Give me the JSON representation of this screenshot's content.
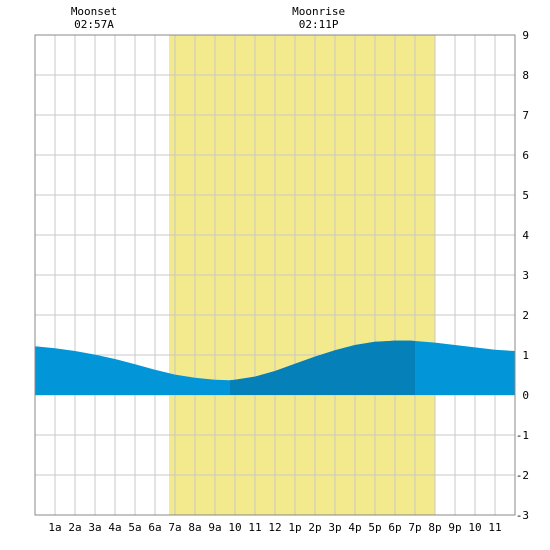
{
  "chart_data": {
    "type": "area",
    "x_tick_labels": [
      "1a",
      "2a",
      "3a",
      "4a",
      "5a",
      "6a",
      "7a",
      "8a",
      "9a",
      "10",
      "11",
      "12",
      "1p",
      "2p",
      "3p",
      "4p",
      "5p",
      "6p",
      "7p",
      "8p",
      "9p",
      "10",
      "11"
    ],
    "xlim": [
      0,
      24
    ],
    "y_tick_labels": [
      "-3",
      "-2",
      "-1",
      "0",
      "1",
      "2",
      "3",
      "4",
      "5",
      "6",
      "7",
      "8",
      "9"
    ],
    "ylim": [
      -3,
      9
    ],
    "grid": true,
    "daylight": {
      "start_hour": 6.7,
      "end_hour": 20.0
    },
    "moon_events": [
      {
        "label": "Moonset",
        "time": "02:57A",
        "hour": 2.95
      },
      {
        "label": "Moonrise",
        "time": "02:11P",
        "hour": 14.18
      }
    ],
    "highlight_range": {
      "start_hour": 9.75,
      "end_hour": 19.0
    },
    "series": [
      {
        "x": [
          0,
          1,
          2,
          3,
          4,
          5,
          6,
          7,
          8,
          9,
          9.75,
          10,
          11,
          12,
          13,
          14,
          15,
          16,
          17,
          18,
          18.75,
          19,
          20,
          21,
          22,
          23,
          24
        ],
        "values": [
          1.22,
          1.17,
          1.1,
          1.01,
          0.9,
          0.77,
          0.63,
          0.51,
          0.43,
          0.38,
          0.37,
          0.38,
          0.46,
          0.6,
          0.78,
          0.96,
          1.12,
          1.25,
          1.33,
          1.36,
          1.36,
          1.35,
          1.31,
          1.25,
          1.19,
          1.13,
          1.1
        ]
      }
    ],
    "colors": {
      "daylight": "#f2ea8c",
      "area": "#0296d8",
      "area_highlight": "#0680b8",
      "grid": "#c8c8c8",
      "axis": "#888888"
    }
  }
}
